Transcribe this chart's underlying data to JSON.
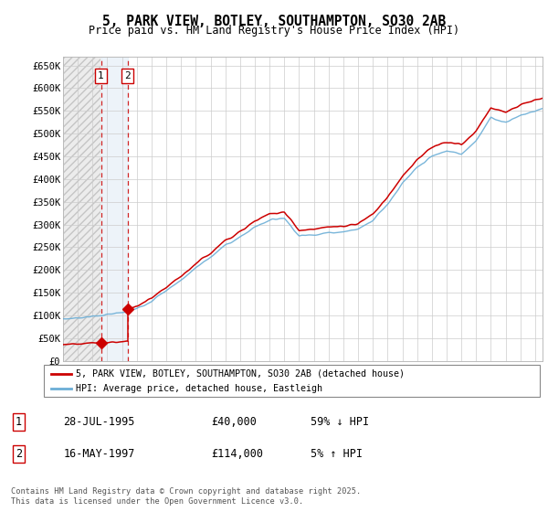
{
  "title": "5, PARK VIEW, BOTLEY, SOUTHAMPTON, SO30 2AB",
  "subtitle": "Price paid vs. HM Land Registry's House Price Index (HPI)",
  "ylim": [
    0,
    670000
  ],
  "yticks": [
    0,
    50000,
    100000,
    150000,
    200000,
    250000,
    300000,
    350000,
    400000,
    450000,
    500000,
    550000,
    600000,
    650000
  ],
  "ytick_labels": [
    "£0",
    "£50K",
    "£100K",
    "£150K",
    "£200K",
    "£250K",
    "£300K",
    "£350K",
    "£400K",
    "£450K",
    "£500K",
    "£550K",
    "£600K",
    "£650K"
  ],
  "sale1_date": 1995.57,
  "sale1_price": 40000,
  "sale2_date": 1997.37,
  "sale2_price": 114000,
  "hpi_color": "#6baed6",
  "price_color": "#cc0000",
  "sale_marker_color": "#cc0000",
  "shade_color": "#dce9f5",
  "legend_label1": "5, PARK VIEW, BOTLEY, SOUTHAMPTON, SO30 2AB (detached house)",
  "legend_label2": "HPI: Average price, detached house, Eastleigh",
  "footer": "Contains HM Land Registry data © Crown copyright and database right 2025.\nThis data is licensed under the Open Government Licence v3.0.",
  "table": [
    {
      "num": "1",
      "date": "28-JUL-1995",
      "price": "£40,000",
      "hpi": "59% ↓ HPI"
    },
    {
      "num": "2",
      "date": "16-MAY-1997",
      "price": "£114,000",
      "hpi": "5% ↑ HPI"
    }
  ],
  "xmin": 1993.0,
  "xmax": 2025.5,
  "hpi_knots_x": [
    1993,
    1994,
    1995,
    1996,
    1997,
    1998,
    1999,
    2000,
    2001,
    2002,
    2003,
    2004,
    2005,
    2006,
    2007,
    2008,
    2009,
    2010,
    2011,
    2012,
    2013,
    2014,
    2015,
    2016,
    2017,
    2018,
    2019,
    2020,
    2021,
    2022,
    2023,
    2024,
    2025.5
  ],
  "hpi_knots_y": [
    92000,
    95000,
    98000,
    102000,
    106000,
    115000,
    132000,
    155000,
    178000,
    205000,
    228000,
    255000,
    272000,
    295000,
    310000,
    315000,
    275000,
    278000,
    282000,
    284000,
    290000,
    310000,
    345000,
    390000,
    425000,
    450000,
    462000,
    455000,
    485000,
    535000,
    525000,
    540000,
    555000
  ]
}
